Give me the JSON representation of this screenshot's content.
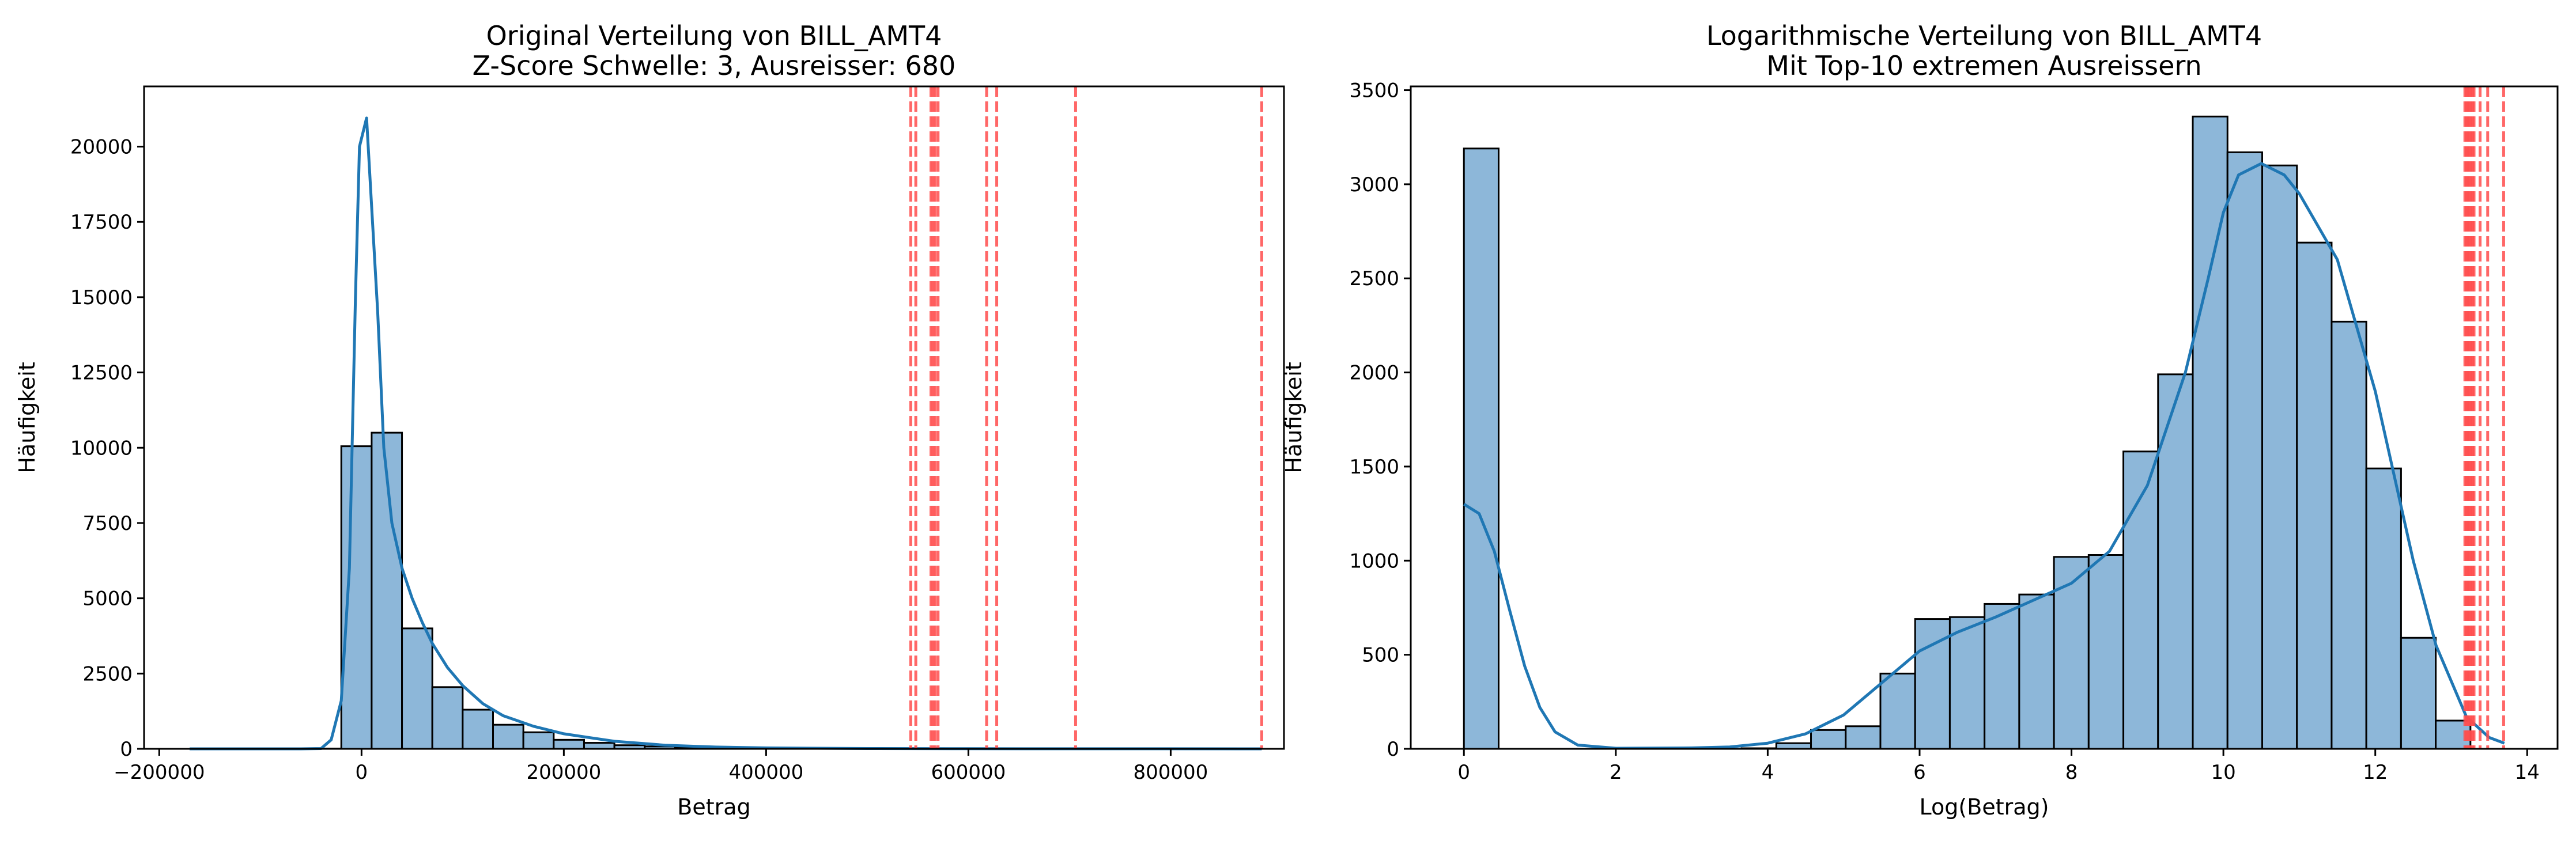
{
  "colors": {
    "bar_fill": "#8db7d9",
    "bar_edge": "#000000",
    "kde_line": "#1f77b4",
    "outlier_line": "#ff4d4d"
  },
  "chart_data": [
    {
      "type": "bar",
      "kind": "histogram",
      "title": "Original Verteilung von BILL_AMT4",
      "subtitle": "Z-Score Schwelle: 3, Ausreisser: 680",
      "xlabel": "Betrag",
      "ylabel": "Häufigkeit",
      "xlim": [
        -215000,
        912000
      ],
      "ylim": [
        0,
        22000
      ],
      "xticks": [
        -200000,
        0,
        200000,
        400000,
        600000,
        800000
      ],
      "xtick_labels": [
        "−200000",
        "0",
        "200000",
        "400000",
        "600000",
        "800000"
      ],
      "yticks": [
        0,
        2500,
        5000,
        7500,
        10000,
        12500,
        15000,
        17500,
        20000
      ],
      "ytick_labels": [
        "0",
        "2500",
        "5000",
        "7500",
        "10000",
        "12500",
        "15000",
        "17500",
        "20000"
      ],
      "bins": [
        {
          "x0": -170000,
          "x1": -140000,
          "value": 0
        },
        {
          "x0": -140000,
          "x1": -110000,
          "value": 0
        },
        {
          "x0": -110000,
          "x1": -80000,
          "value": 0
        },
        {
          "x0": -80000,
          "x1": -50000,
          "value": 0
        },
        {
          "x0": -50000,
          "x1": -20000,
          "value": 10
        },
        {
          "x0": -20000,
          "x1": 10000,
          "value": 10050
        },
        {
          "x0": 10000,
          "x1": 40000,
          "value": 10500
        },
        {
          "x0": 40000,
          "x1": 70000,
          "value": 4000
        },
        {
          "x0": 70000,
          "x1": 100000,
          "value": 2050
        },
        {
          "x0": 100000,
          "x1": 130000,
          "value": 1300
        },
        {
          "x0": 130000,
          "x1": 160000,
          "value": 800
        },
        {
          "x0": 160000,
          "x1": 190000,
          "value": 550
        },
        {
          "x0": 190000,
          "x1": 220000,
          "value": 300
        },
        {
          "x0": 220000,
          "x1": 250000,
          "value": 200
        },
        {
          "x0": 250000,
          "x1": 280000,
          "value": 120
        },
        {
          "x0": 280000,
          "x1": 310000,
          "value": 80
        },
        {
          "x0": 310000,
          "x1": 340000,
          "value": 50
        },
        {
          "x0": 340000,
          "x1": 370000,
          "value": 30
        },
        {
          "x0": 370000,
          "x1": 400000,
          "value": 20
        },
        {
          "x0": 400000,
          "x1": 430000,
          "value": 12
        },
        {
          "x0": 430000,
          "x1": 460000,
          "value": 8
        },
        {
          "x0": 460000,
          "x1": 490000,
          "value": 5
        },
        {
          "x0": 490000,
          "x1": 520000,
          "value": 3
        },
        {
          "x0": 520000,
          "x1": 550000,
          "value": 3
        },
        {
          "x0": 550000,
          "x1": 580000,
          "value": 3
        },
        {
          "x0": 580000,
          "x1": 610000,
          "value": 2
        },
        {
          "x0": 610000,
          "x1": 640000,
          "value": 2
        },
        {
          "x0": 640000,
          "x1": 670000,
          "value": 1
        },
        {
          "x0": 670000,
          "x1": 700000,
          "value": 1
        },
        {
          "x0": 700000,
          "x1": 730000,
          "value": 1
        }
      ],
      "kde": [
        [
          -170000,
          0
        ],
        [
          -100000,
          0
        ],
        [
          -60000,
          0
        ],
        [
          -40000,
          10
        ],
        [
          -30000,
          300
        ],
        [
          -20000,
          1600
        ],
        [
          -12000,
          6000
        ],
        [
          -6000,
          15000
        ],
        [
          -2000,
          20000
        ],
        [
          5000,
          20950
        ],
        [
          10000,
          18000
        ],
        [
          16000,
          14500
        ],
        [
          22000,
          10000
        ],
        [
          30000,
          7500
        ],
        [
          40000,
          6000
        ],
        [
          50000,
          5000
        ],
        [
          60000,
          4200
        ],
        [
          70000,
          3500
        ],
        [
          85000,
          2700
        ],
        [
          100000,
          2100
        ],
        [
          120000,
          1500
        ],
        [
          140000,
          1100
        ],
        [
          170000,
          750
        ],
        [
          200000,
          500
        ],
        [
          250000,
          250
        ],
        [
          300000,
          120
        ],
        [
          350000,
          60
        ],
        [
          400000,
          30
        ],
        [
          500000,
          10
        ],
        [
          600000,
          4
        ],
        [
          700000,
          2
        ],
        [
          800000,
          1
        ],
        [
          890000,
          0
        ]
      ],
      "outlier_lines": [
        543000,
        548000,
        563000,
        565000,
        567000,
        570000,
        618000,
        628000,
        706000,
        890000
      ]
    },
    {
      "type": "bar",
      "kind": "histogram",
      "title": "Logarithmische Verteilung von BILL_AMT4",
      "subtitle": "Mit Top-10 extremen Ausreissern",
      "xlabel": "Log(Betrag)",
      "ylabel": "Häufigkeit",
      "xlim": [
        -0.7,
        14.4
      ],
      "ylim": [
        0,
        3520
      ],
      "xticks": [
        0,
        2,
        4,
        6,
        8,
        10,
        12,
        14
      ],
      "xtick_labels": [
        "0",
        "2",
        "4",
        "6",
        "8",
        "10",
        "12",
        "14"
      ],
      "yticks": [
        0,
        500,
        1000,
        1500,
        2000,
        2500,
        3000,
        3500
      ],
      "ytick_labels": [
        "0",
        "500",
        "1000",
        "1500",
        "2000",
        "2500",
        "3000",
        "3500"
      ],
      "bin_start": 0,
      "bin_width": 0.457,
      "values": [
        3190,
        0,
        0,
        0,
        0,
        0,
        0,
        0,
        3,
        30,
        100,
        120,
        400,
        690,
        700,
        770,
        820,
        1020,
        1030,
        1580,
        1990,
        3360,
        3170,
        3100,
        2690,
        2270,
        1490,
        590,
        150,
        0
      ],
      "kde": [
        [
          0,
          1300
        ],
        [
          0.2,
          1250
        ],
        [
          0.4,
          1050
        ],
        [
          0.6,
          740
        ],
        [
          0.8,
          440
        ],
        [
          1.0,
          220
        ],
        [
          1.2,
          90
        ],
        [
          1.5,
          20
        ],
        [
          2.0,
          3
        ],
        [
          3.0,
          5
        ],
        [
          3.5,
          10
        ],
        [
          4.0,
          30
        ],
        [
          4.5,
          80
        ],
        [
          5.0,
          180
        ],
        [
          5.5,
          350
        ],
        [
          6.0,
          520
        ],
        [
          6.5,
          620
        ],
        [
          7.0,
          700
        ],
        [
          7.5,
          790
        ],
        [
          8.0,
          880
        ],
        [
          8.5,
          1050
        ],
        [
          9.0,
          1400
        ],
        [
          9.5,
          2000
        ],
        [
          9.8,
          2500
        ],
        [
          10.0,
          2850
        ],
        [
          10.2,
          3050
        ],
        [
          10.5,
          3110
        ],
        [
          10.8,
          3050
        ],
        [
          11.0,
          2950
        ],
        [
          11.5,
          2600
        ],
        [
          12.0,
          1900
        ],
        [
          12.5,
          1000
        ],
        [
          12.8,
          550
        ],
        [
          13.2,
          170
        ],
        [
          13.5,
          60
        ],
        [
          13.7,
          30
        ]
      ],
      "outlier_lines": [
        13.18,
        13.2,
        13.22,
        13.24,
        13.26,
        13.28,
        13.3,
        13.38,
        13.48,
        13.69
      ]
    }
  ]
}
